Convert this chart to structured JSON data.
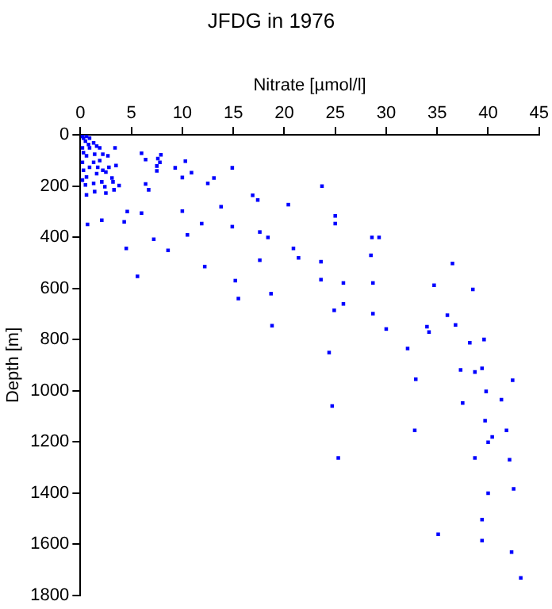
{
  "chart_data": {
    "type": "scatter",
    "title": "JFDG in 1976",
    "xlabel": "Nitrate [µmol/l]",
    "ylabel": "Depth [m]",
    "xlim": [
      0,
      45
    ],
    "xticks": [
      0,
      5,
      10,
      15,
      20,
      25,
      30,
      35,
      40,
      45
    ],
    "ylim": [
      1800,
      0
    ],
    "yticks": [
      0,
      200,
      400,
      600,
      800,
      1000,
      1200,
      1400,
      1600,
      1800
    ],
    "grid": false,
    "legend": false,
    "marker": "square",
    "series": [
      {
        "color": "#0000ff",
        "x": [
          0.2,
          0.3,
          0.6,
          0.9,
          0.5,
          0.8,
          1.3,
          1.6,
          0.2,
          0.9,
          1.9,
          0.3,
          1.4,
          2.2,
          0.6,
          2.7,
          0.2,
          1.3,
          1.9,
          0.9,
          1.7,
          2.2,
          0.3,
          2.8,
          3.5,
          2.5,
          1.6,
          0.6,
          0.2,
          2.1,
          1.3,
          3.2,
          2.4,
          0.5,
          1.4,
          0.6,
          2.5,
          3.3,
          6.0,
          6.4,
          7.9,
          7.6,
          7.8,
          7.5,
          7.5,
          9.3,
          10.3,
          10.9,
          10.0,
          6.4,
          6.7,
          3.4,
          3.8,
          3.1,
          13.1,
          12.5,
          14.9,
          16.9,
          17.4,
          13.8,
          10.0,
          6.0,
          4.6,
          4.3,
          2.1,
          0.7,
          11.9,
          14.9,
          17.6,
          18.4,
          7.2,
          10.5,
          4.5,
          8.6,
          12.2,
          17.6,
          5.6,
          15.2,
          15.5,
          18.7,
          18.8,
          20.4,
          20.9,
          21.4,
          23.7,
          25.0,
          25.0,
          28.6,
          29.3,
          23.6,
          28.5,
          36.5,
          23.6,
          25.8,
          28.7,
          34.7,
          38.5,
          24.9,
          25.8,
          28.7,
          30.0,
          34.0,
          34.2,
          36.0,
          36.8,
          38.2,
          39.6,
          24.4,
          32.1,
          37.3,
          38.7,
          39.4,
          32.9,
          42.4,
          39.8,
          41.3,
          37.5,
          24.7,
          39.7,
          32.8,
          41.8,
          40.4,
          40.0,
          25.3,
          38.7,
          42.1,
          42.5,
          40.0,
          39.4,
          35.1,
          39.4,
          42.3,
          43.2
        ],
        "values": [
          6,
          13,
          6,
          13,
          25,
          38,
          32,
          44,
          51,
          51,
          51,
          70,
          76,
          76,
          82,
          82,
          108,
          108,
          101,
          127,
          127,
          139,
          139,
          127,
          120,
          146,
          152,
          165,
          177,
          184,
          190,
          184,
          203,
          196,
          222,
          235,
          228,
          215,
          72,
          97,
          78,
          93,
          108,
          122,
          141,
          129,
          103,
          148,
          167,
          192,
          215,
          51,
          198,
          169,
          169,
          190,
          129,
          236,
          255,
          281,
          298,
          306,
          300,
          340,
          334,
          350,
          347,
          359,
          380,
          401,
          408,
          391,
          444,
          452,
          515,
          490,
          553,
          570,
          640,
          621,
          746,
          273,
          444,
          481,
          201,
          317,
          347,
          401,
          401,
          496,
          471,
          503,
          566,
          579,
          579,
          588,
          604,
          686,
          661,
          699,
          759,
          750,
          771,
          705,
          743,
          813,
          800,
          851,
          835,
          919,
          927,
          913,
          955,
          959,
          1003,
          1035,
          1048,
          1060,
          1117,
          1155,
          1155,
          1181,
          1202,
          1263,
          1263,
          1270,
          1384,
          1401,
          1504,
          1561,
          1586,
          1631,
          1732
        ]
      }
    ]
  }
}
